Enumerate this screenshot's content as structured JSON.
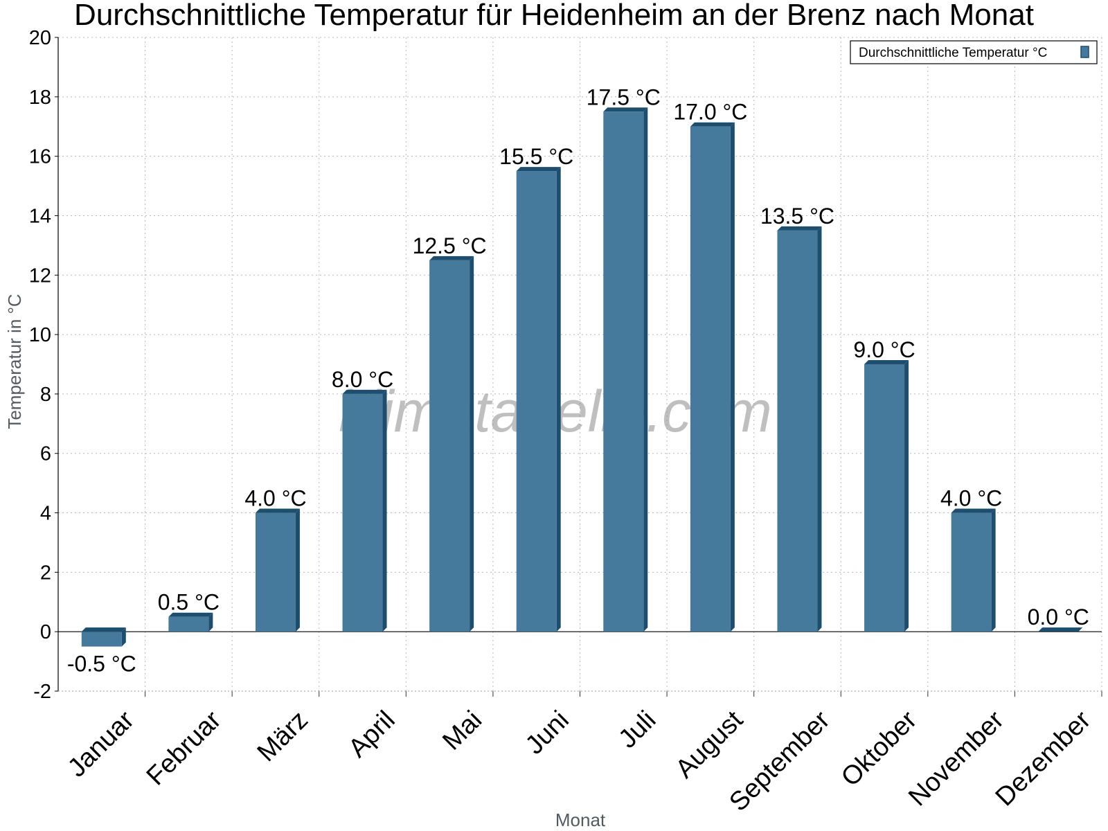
{
  "chart_data": {
    "type": "bar",
    "title": "Durchschnittliche Temperatur für Heidenheim an der Brenz nach Monat",
    "xlabel": "Monat",
    "ylabel": "Temperatur in °C",
    "categories": [
      "Januar",
      "Februar",
      "März",
      "April",
      "Mai",
      "Juni",
      "Juli",
      "August",
      "September",
      "Oktober",
      "November",
      "Dezember"
    ],
    "series": [
      {
        "name": "Durchschnittliche Temperatur °C",
        "values": [
          -0.5,
          0.5,
          4.0,
          8.0,
          12.5,
          15.5,
          17.5,
          17.0,
          13.5,
          9.0,
          4.0,
          0.0
        ],
        "labels": [
          "-0.5 °C",
          "0.5 °C",
          "4.0 °C",
          "8.0 °C",
          "12.5 °C",
          "15.5 °C",
          "17.5 °C",
          "17.0 °C",
          "13.5 °C",
          "9.0 °C",
          "4.0 °C",
          "0.0 °C"
        ]
      }
    ],
    "ylim": [
      -2,
      20
    ],
    "yticks": [
      -2,
      0,
      2,
      4,
      6,
      8,
      10,
      12,
      14,
      16,
      18,
      20
    ],
    "grid": true,
    "legend_position": "top-right",
    "watermark": "klimatabelle.com",
    "colors": {
      "bar": "#467a9c",
      "bar_dark": "#1e4e6e",
      "grid": "#b8b8b8",
      "axis": "#000000"
    }
  }
}
